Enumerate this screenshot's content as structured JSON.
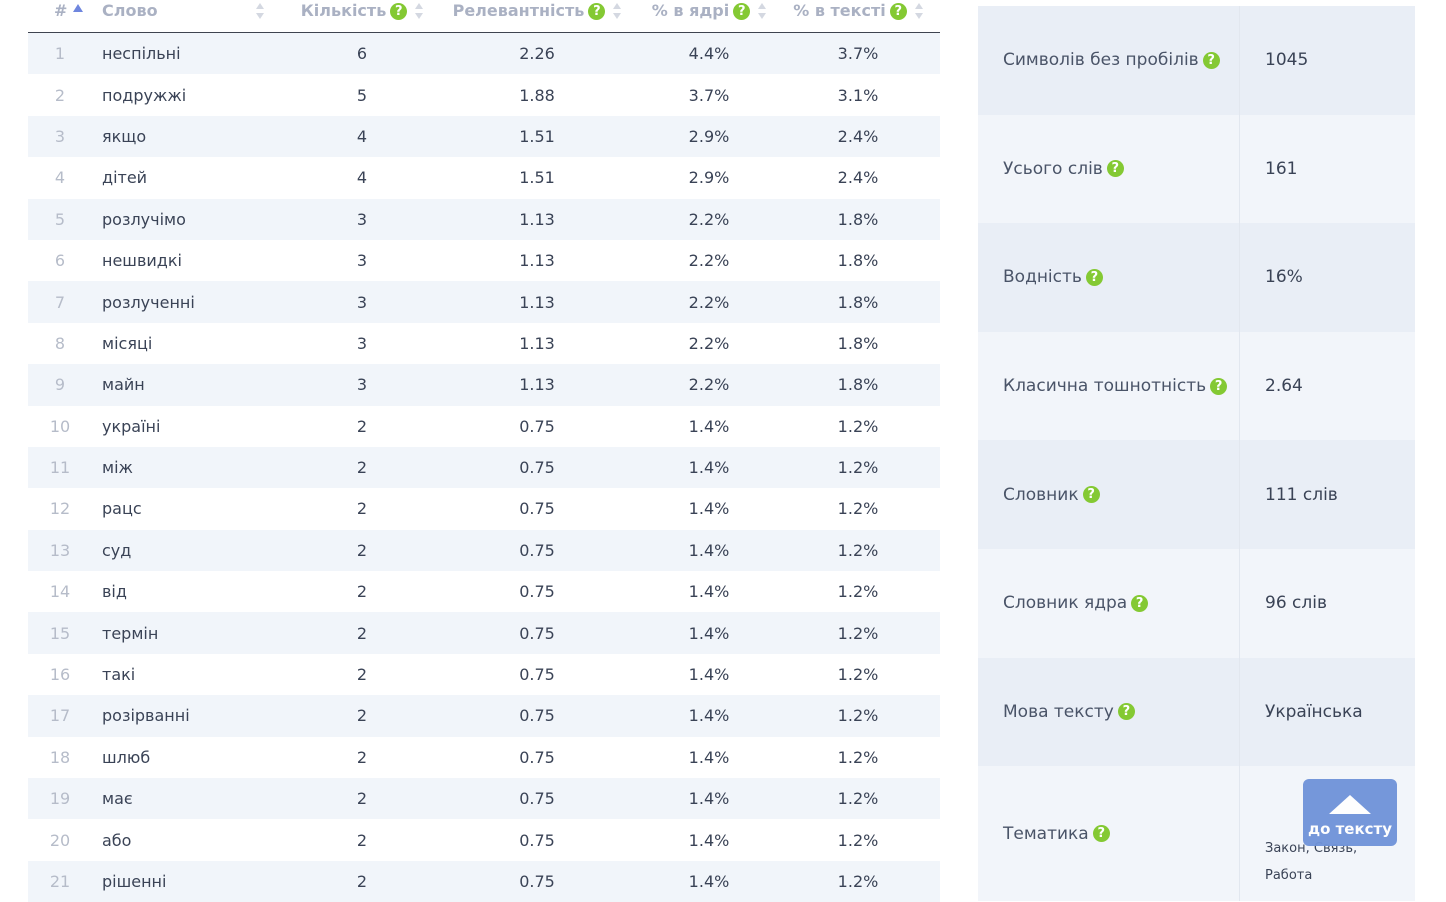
{
  "table": {
    "headers": {
      "num": "#",
      "word": "Слово",
      "count": "Кількість",
      "relevance": "Релевантність",
      "core_pct": "% в ядрі",
      "text_pct": "% в тексті"
    },
    "rows": [
      {
        "n": "1",
        "word": "неспільні",
        "count": "6",
        "rel": "2.26",
        "core": "4.4%",
        "text": "3.7%"
      },
      {
        "n": "2",
        "word": "подружжі",
        "count": "5",
        "rel": "1.88",
        "core": "3.7%",
        "text": "3.1%"
      },
      {
        "n": "3",
        "word": "якщо",
        "count": "4",
        "rel": "1.51",
        "core": "2.9%",
        "text": "2.4%"
      },
      {
        "n": "4",
        "word": "дітей",
        "count": "4",
        "rel": "1.51",
        "core": "2.9%",
        "text": "2.4%"
      },
      {
        "n": "5",
        "word": "розлучімо",
        "count": "3",
        "rel": "1.13",
        "core": "2.2%",
        "text": "1.8%"
      },
      {
        "n": "6",
        "word": "нешвидкі",
        "count": "3",
        "rel": "1.13",
        "core": "2.2%",
        "text": "1.8%"
      },
      {
        "n": "7",
        "word": "розлученні",
        "count": "3",
        "rel": "1.13",
        "core": "2.2%",
        "text": "1.8%"
      },
      {
        "n": "8",
        "word": "місяці",
        "count": "3",
        "rel": "1.13",
        "core": "2.2%",
        "text": "1.8%"
      },
      {
        "n": "9",
        "word": "майн",
        "count": "3",
        "rel": "1.13",
        "core": "2.2%",
        "text": "1.8%"
      },
      {
        "n": "10",
        "word": "україні",
        "count": "2",
        "rel": "0.75",
        "core": "1.4%",
        "text": "1.2%"
      },
      {
        "n": "11",
        "word": "між",
        "count": "2",
        "rel": "0.75",
        "core": "1.4%",
        "text": "1.2%"
      },
      {
        "n": "12",
        "word": "рацс",
        "count": "2",
        "rel": "0.75",
        "core": "1.4%",
        "text": "1.2%"
      },
      {
        "n": "13",
        "word": "суд",
        "count": "2",
        "rel": "0.75",
        "core": "1.4%",
        "text": "1.2%"
      },
      {
        "n": "14",
        "word": "від",
        "count": "2",
        "rel": "0.75",
        "core": "1.4%",
        "text": "1.2%"
      },
      {
        "n": "15",
        "word": "термін",
        "count": "2",
        "rel": "0.75",
        "core": "1.4%",
        "text": "1.2%"
      },
      {
        "n": "16",
        "word": "такі",
        "count": "2",
        "rel": "0.75",
        "core": "1.4%",
        "text": "1.2%"
      },
      {
        "n": "17",
        "word": "розірванні",
        "count": "2",
        "rel": "0.75",
        "core": "1.4%",
        "text": "1.2%"
      },
      {
        "n": "18",
        "word": "шлюб",
        "count": "2",
        "rel": "0.75",
        "core": "1.4%",
        "text": "1.2%"
      },
      {
        "n": "19",
        "word": "має",
        "count": "2",
        "rel": "0.75",
        "core": "1.4%",
        "text": "1.2%"
      },
      {
        "n": "20",
        "word": "або",
        "count": "2",
        "rel": "0.75",
        "core": "1.4%",
        "text": "1.2%"
      },
      {
        "n": "21",
        "word": "рішенні",
        "count": "2",
        "rel": "0.75",
        "core": "1.4%",
        "text": "1.2%"
      }
    ]
  },
  "help_glyph": "?",
  "stats": [
    {
      "label": "Символів без пробілів",
      "value": "1045"
    },
    {
      "label": "Усього слів",
      "value": "161"
    },
    {
      "label": "Водність",
      "value": "16%"
    },
    {
      "label": "Класична тошнотність",
      "value": "2.64"
    },
    {
      "label": "Словник",
      "value": "111 слів"
    },
    {
      "label": "Словник ядра",
      "value": "96 слів"
    },
    {
      "label": "Мова тексту",
      "value": "Українська"
    },
    {
      "label": "Тематика",
      "value_lines": [
        "Закон, Связь,",
        "Работа"
      ]
    }
  ],
  "to_text_button": {
    "label": "до тексту",
    "icon": "up-triangle-icon"
  },
  "colors": {
    "accent": "#6f93d9",
    "help": "#84c933",
    "row_alt": "#f1f5fa"
  }
}
